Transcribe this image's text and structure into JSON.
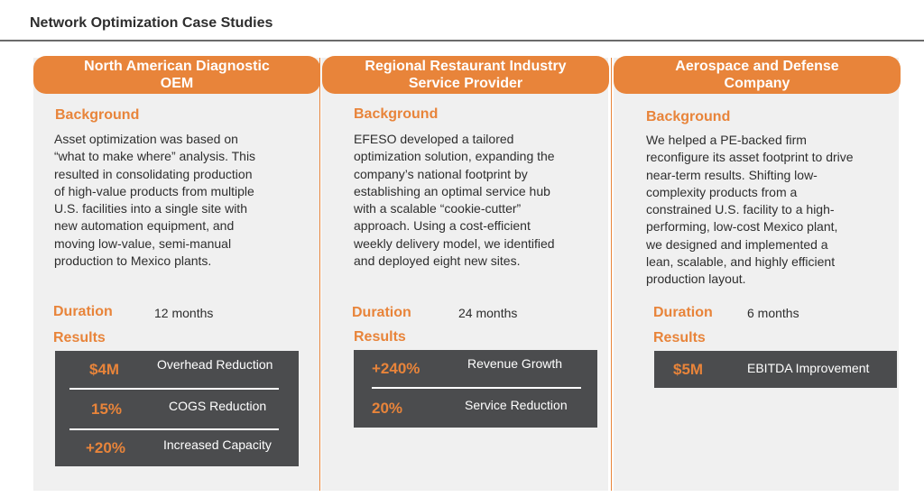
{
  "page": {
    "title": "Network Optimization Case Studies"
  },
  "labels": {
    "background": "Background",
    "duration": "Duration",
    "results": "Results"
  },
  "cases": [
    {
      "title_line1": "North American Diagnostic",
      "title_line2": "OEM",
      "background": [
        "Asset optimization was based on",
        "“what to make where” analysis. This",
        "resulted in consolidating production",
        "of high-value products from multiple",
        "U.S. facilities into a single site with",
        "new automation equipment, and",
        "moving low-value, semi-manual",
        "production to Mexico plants."
      ],
      "duration": "12 months",
      "results": [
        {
          "value": "$4M",
          "desc": "Overhead Reduction"
        },
        {
          "value": "15%",
          "desc": "COGS Reduction"
        },
        {
          "value": "+20%",
          "desc": "Increased Capacity"
        }
      ]
    },
    {
      "title_line1": "Regional Restaurant Industry",
      "title_line2": "Service Provider",
      "background": [
        "EFESO developed a tailored",
        "optimization solution, expanding the",
        "company’s national footprint by",
        "establishing an optimal service hub",
        "with a scalable “cookie-cutter”",
        "approach. Using a cost-efficient",
        "weekly delivery model, we identified",
        "and deployed eight new sites."
      ],
      "duration": "24 months",
      "results": [
        {
          "value": "+240%",
          "desc": "Revenue Growth"
        },
        {
          "value": "20%",
          "desc": "Service Reduction"
        }
      ]
    },
    {
      "title_line1": "Aerospace and Defense",
      "title_line2": "Company",
      "background": [
        "We helped a PE-backed firm",
        "reconfigure its asset footprint to drive",
        "near-term results. Shifting low-",
        "complexity products from a",
        "constrained U.S. facility to a high-",
        "performing, low-cost Mexico plant,",
        "we designed and implemented a",
        "lean, scalable, and highly efficient",
        "production layout."
      ],
      "duration": "6 months",
      "results": [
        {
          "value": "$5M",
          "desc": "EBITDA Improvement"
        }
      ]
    }
  ],
  "colors": {
    "accent": "#e8843a",
    "results_bg": "#4b4c4e",
    "panel_bg": "#f0f0f0"
  }
}
